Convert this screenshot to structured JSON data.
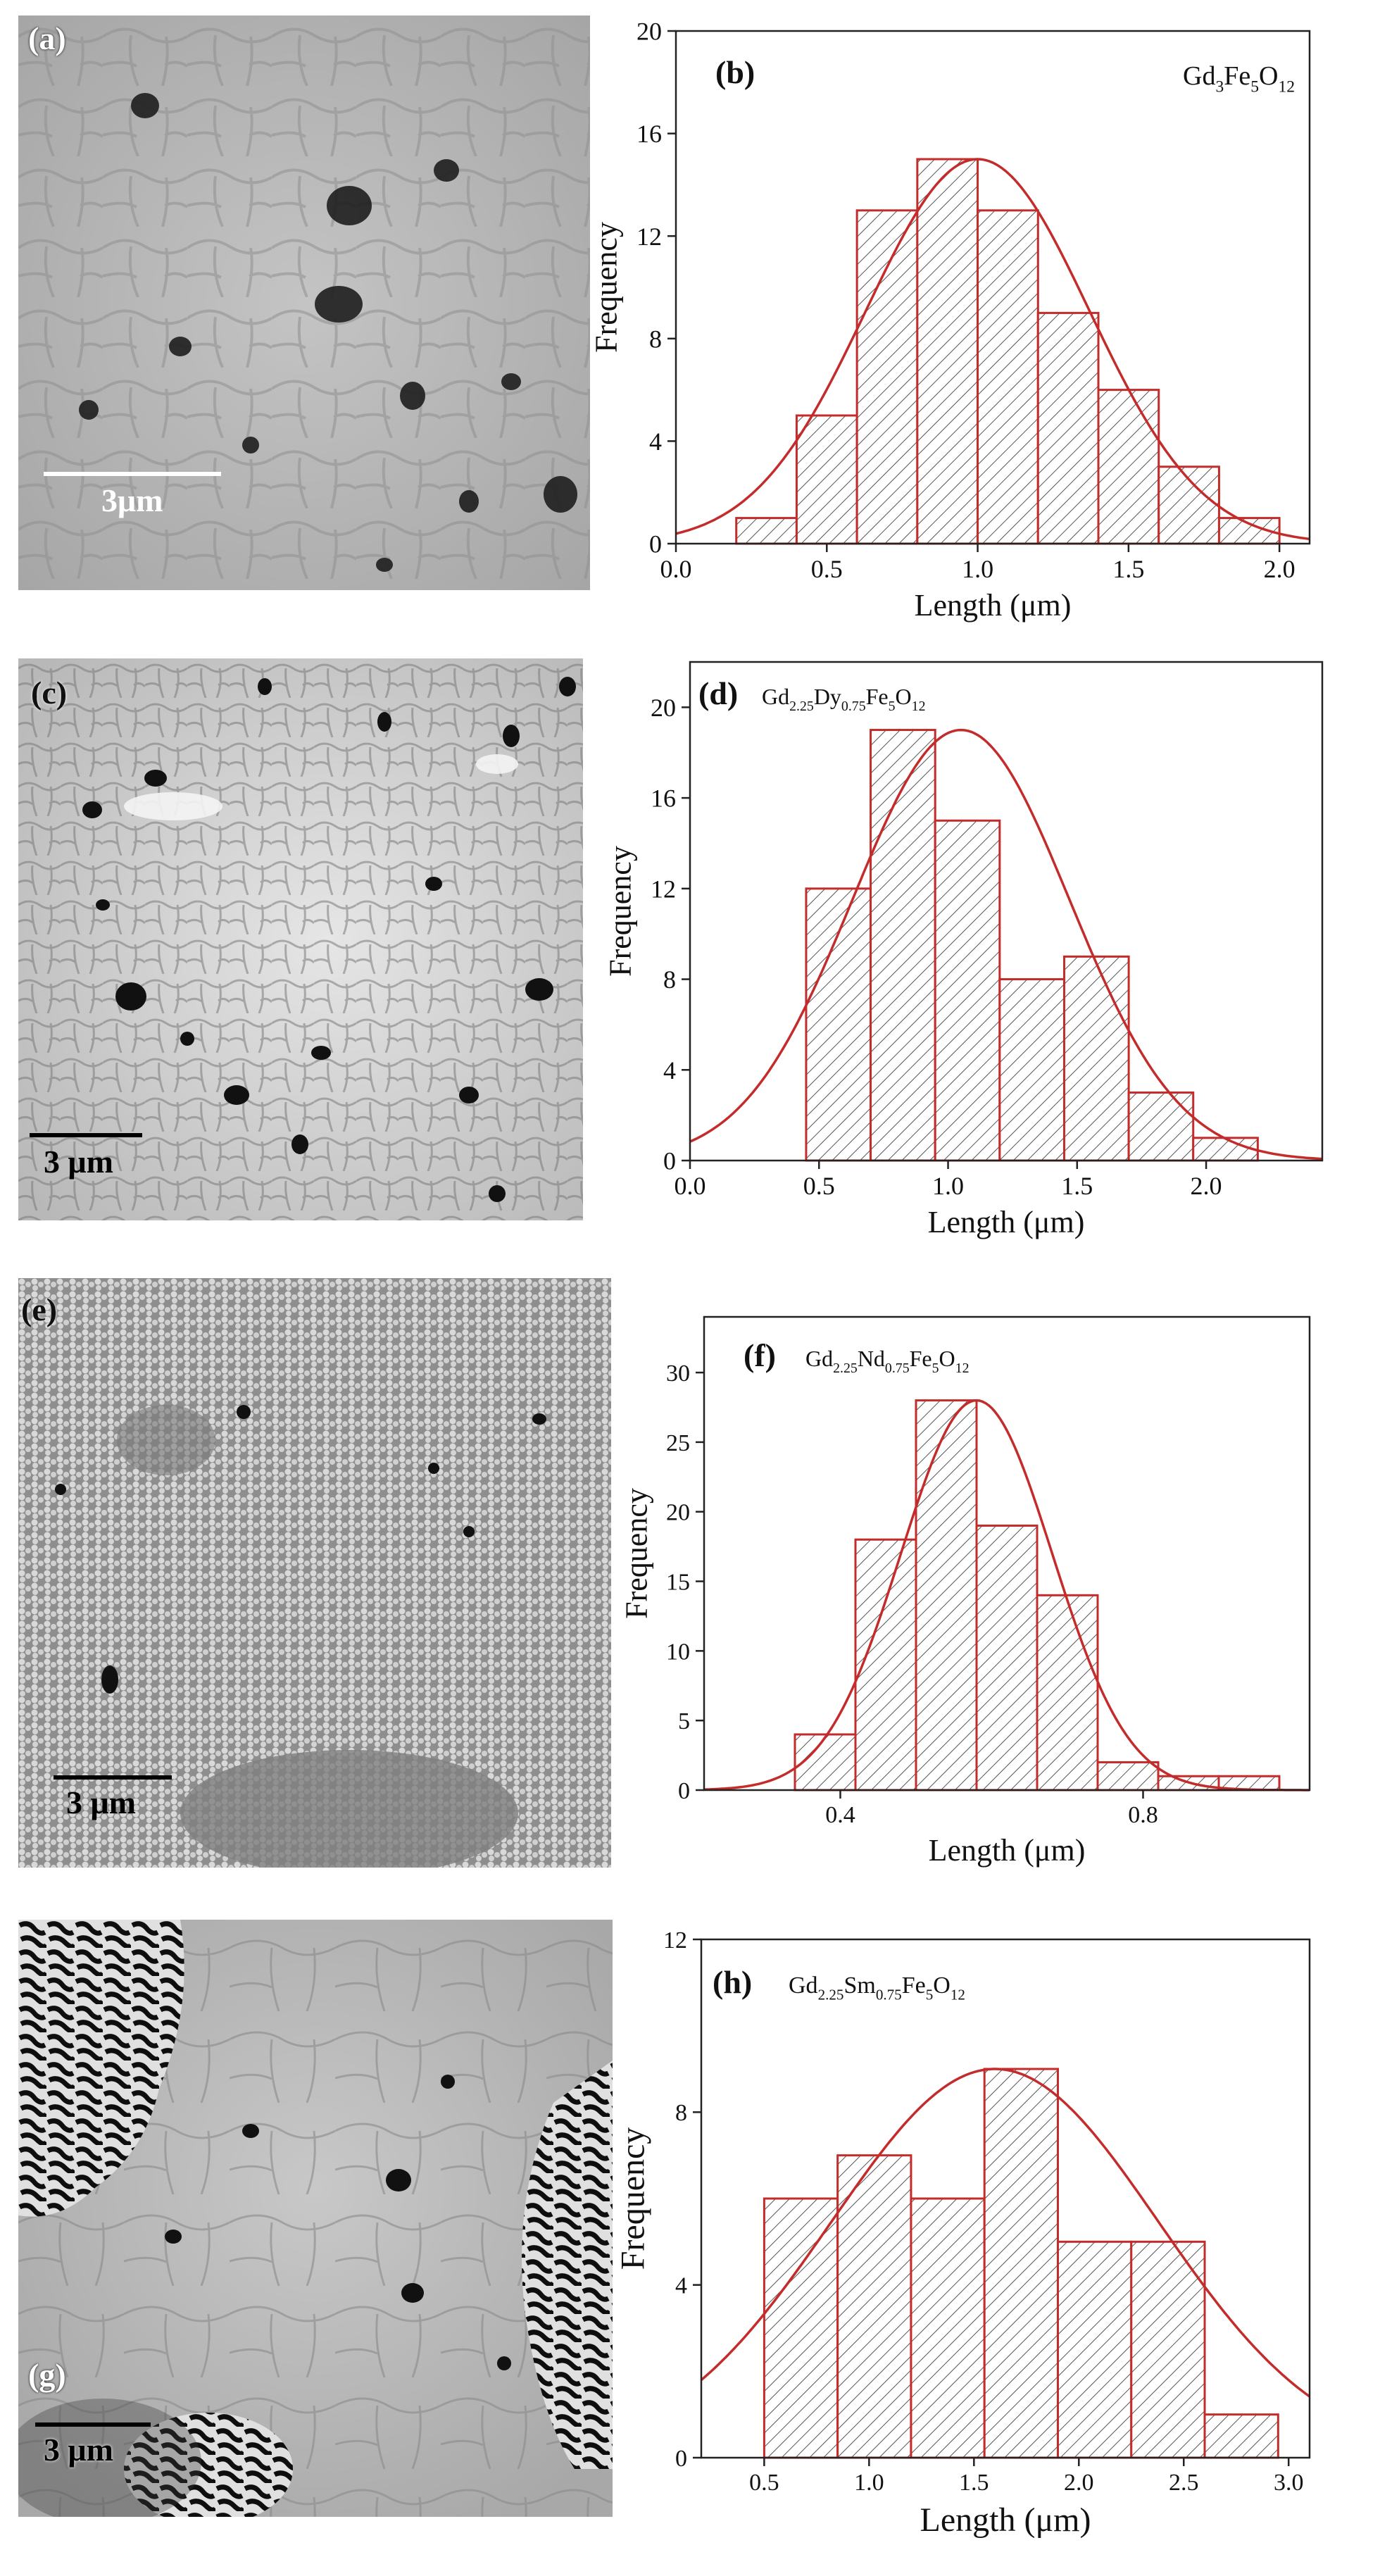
{
  "panels": [
    {
      "sem": {
        "label": "(a)",
        "scale_label": "3μm",
        "scale_color": "#ffffff"
      },
      "chart_data": {
        "type": "bar",
        "panel_label": "(b)",
        "composition": {
          "parts": [
            [
              "Gd",
              ""
            ],
            [
              "3",
              "sub"
            ],
            [
              "Fe",
              ""
            ],
            [
              "5",
              "sub"
            ],
            [
              "O",
              ""
            ],
            [
              "12",
              "sub"
            ]
          ]
        },
        "xlabel": "Length (μm)",
        "ylabel": "Frequency",
        "xlim": [
          0.0,
          2.1
        ],
        "ylim": [
          0,
          20
        ],
        "xticks": [
          0.0,
          0.5,
          1.0,
          1.5,
          2.0
        ],
        "xtick_labels": [
          "0.0",
          "0.5",
          "1.0",
          "1.5",
          "2.0"
        ],
        "yticks": [
          0,
          4,
          8,
          12,
          16,
          20
        ],
        "ytick_labels": [
          "0",
          "4",
          "8",
          "12",
          "16",
          "20"
        ],
        "bin_edges": [
          0.2,
          0.4,
          0.6,
          0.8,
          1.0,
          1.2,
          1.4,
          1.6,
          1.8,
          2.0
        ],
        "values": [
          1,
          5,
          13,
          15,
          13,
          9,
          6,
          3,
          1
        ],
        "fit": {
          "type": "gaussian",
          "mean": 1.0,
          "sd": 0.37,
          "peak": 15
        },
        "bar_color": "#c42b2b",
        "hatch_color": "#555555"
      }
    },
    {
      "sem": {
        "label": "(c)",
        "scale_label": "3 μm",
        "scale_color": "#000000"
      },
      "chart_data": {
        "type": "bar",
        "panel_label": "(d)",
        "composition": {
          "parts": [
            [
              "Gd",
              ""
            ],
            [
              "2.25",
              "sub"
            ],
            [
              "Dy",
              ""
            ],
            [
              "0.75",
              "sub"
            ],
            [
              "Fe",
              ""
            ],
            [
              "5",
              "sub"
            ],
            [
              "O",
              ""
            ],
            [
              "12",
              "sub"
            ]
          ]
        },
        "xlabel": "Length (μm)",
        "ylabel": "Frequency",
        "xlim": [
          0.0,
          2.45
        ],
        "ylim": [
          0,
          22
        ],
        "xticks": [
          0.0,
          0.5,
          1.0,
          1.5,
          2.0
        ],
        "xtick_labels": [
          "0.0",
          "0.5",
          "1.0",
          "1.5",
          "2.0"
        ],
        "yticks": [
          0,
          4,
          8,
          12,
          16,
          20
        ],
        "ytick_labels": [
          "0",
          "4",
          "8",
          "12",
          "16",
          "20"
        ],
        "bin_edges": [
          0.45,
          0.7,
          0.95,
          1.2,
          1.45,
          1.7,
          1.95,
          2.2
        ],
        "values": [
          12,
          19,
          15,
          8,
          9,
          3,
          1
        ],
        "fit": {
          "type": "gaussian",
          "mean": 1.05,
          "sd": 0.42,
          "peak": 19
        },
        "bar_color": "#c42b2b",
        "hatch_color": "#555555"
      }
    },
    {
      "sem": {
        "label": "(e)",
        "scale_label": "3 μm",
        "scale_color": "#000000"
      },
      "chart_data": {
        "type": "bar",
        "panel_label": "(f)",
        "composition": {
          "parts": [
            [
              "Gd",
              ""
            ],
            [
              "2.25",
              "sub"
            ],
            [
              "Nd",
              ""
            ],
            [
              "0.75",
              "sub"
            ],
            [
              "Fe",
              ""
            ],
            [
              "5",
              "sub"
            ],
            [
              "O",
              ""
            ],
            [
              "12",
              "sub"
            ]
          ]
        },
        "xlabel": "Length (μm)",
        "ylabel": "Frequency",
        "xlim": [
          0.22,
          1.02
        ],
        "ylim": [
          0,
          34
        ],
        "xticks": [
          0.4,
          0.8
        ],
        "xtick_labels": [
          "0.4",
          "0.8"
        ],
        "yticks": [
          0,
          5,
          10,
          15,
          20,
          25,
          30
        ],
        "ytick_labels": [
          "0",
          "5",
          "10",
          "15",
          "20",
          "25",
          "30"
        ],
        "bin_edges": [
          0.34,
          0.42,
          0.5,
          0.58,
          0.66,
          0.74,
          0.82,
          0.9,
          0.98
        ],
        "values": [
          4,
          18,
          28,
          19,
          14,
          2,
          1,
          1
        ],
        "fit": {
          "type": "gaussian",
          "mean": 0.58,
          "sd": 0.1,
          "peak": 28
        },
        "bar_color": "#c42b2b",
        "hatch_color": "#555555"
      }
    },
    {
      "sem": {
        "label": "(g)",
        "scale_label": "3 μm",
        "scale_color": "#000000"
      },
      "chart_data": {
        "type": "bar",
        "panel_label": "(h)",
        "composition": {
          "parts": [
            [
              "Gd",
              ""
            ],
            [
              "2.25",
              "sub"
            ],
            [
              "Sm",
              ""
            ],
            [
              "0.75",
              "sub"
            ],
            [
              "Fe",
              ""
            ],
            [
              "5",
              "sub"
            ],
            [
              "O",
              ""
            ],
            [
              "12",
              "sub"
            ]
          ]
        },
        "xlabel": "Length (μm)",
        "ylabel": "Frequency",
        "xlim": [
          0.2,
          3.1
        ],
        "ylim": [
          0,
          12
        ],
        "xticks": [
          0.5,
          1.0,
          1.5,
          2.0,
          2.5,
          3.0
        ],
        "xtick_labels": [
          "0.5",
          "1.0",
          "1.5",
          "2.0",
          "2.5",
          "3.0"
        ],
        "yticks": [
          0,
          4,
          8,
          12
        ],
        "ytick_labels": [
          "0",
          "4",
          "8",
          "12"
        ],
        "bin_edges": [
          0.5,
          0.85,
          1.2,
          1.55,
          1.9,
          2.25,
          2.6,
          2.95
        ],
        "values": [
          6,
          7,
          6,
          9,
          5,
          5,
          1
        ],
        "fit": {
          "type": "gaussian",
          "mean": 1.6,
          "sd": 0.78,
          "peak": 9
        },
        "bar_color": "#c42b2b",
        "hatch_color": "#555555"
      }
    }
  ]
}
